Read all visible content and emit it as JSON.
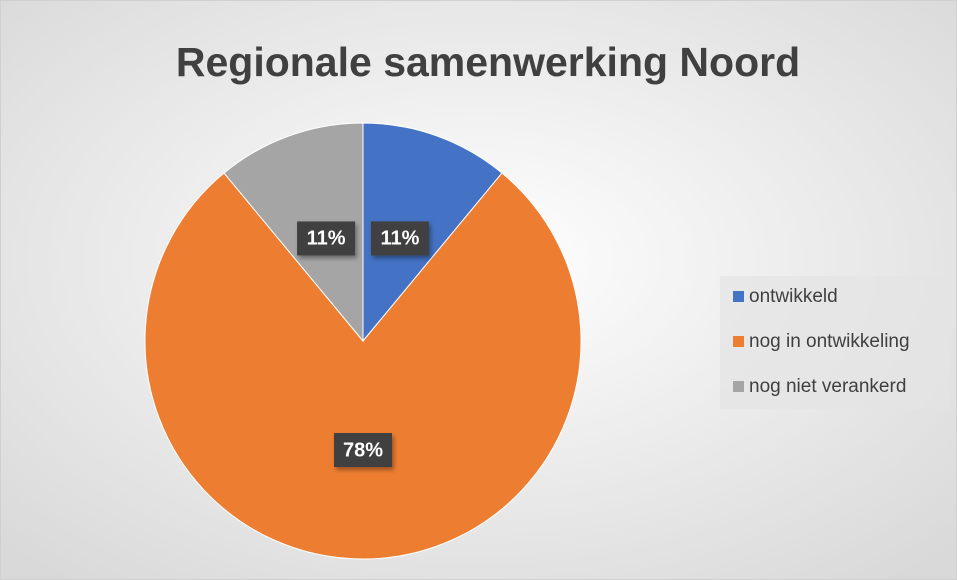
{
  "chart_data": {
    "type": "pie",
    "title": "Regionale samenwerking Noord",
    "categories": [
      "ontwikkeld",
      "nog in ontwikkeling",
      "nog niet verankerd"
    ],
    "values": [
      11,
      78,
      11
    ],
    "value_labels": [
      "11%",
      "78%",
      "11%"
    ],
    "colors": [
      "#4472c4",
      "#ed7d31",
      "#a5a5a5"
    ],
    "legend": "right"
  }
}
